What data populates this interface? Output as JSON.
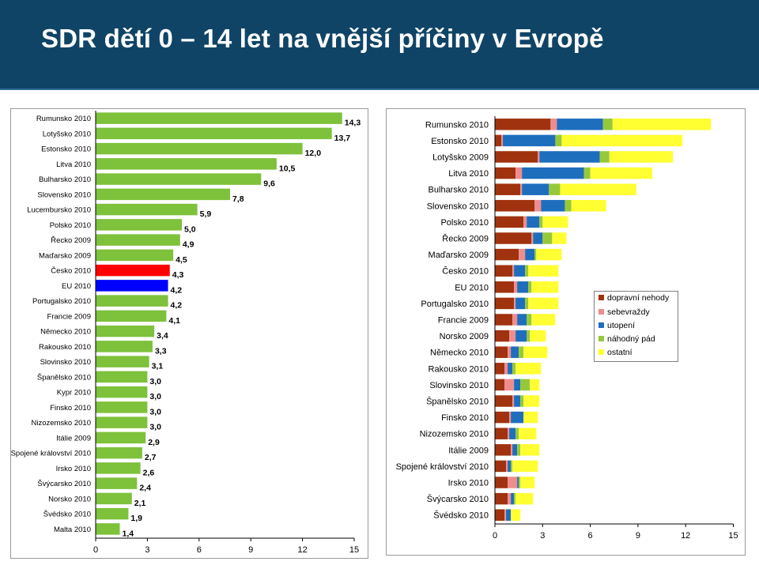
{
  "header": {
    "title": "SDR dětí 0 – 14 let na vnější příčiny v Evropě"
  },
  "colors": {
    "header_bg": "#0f4466",
    "bar_default": "#7ec13b",
    "bar_cesko": "#ff0000",
    "bar_eu": "#0000ff",
    "cat_dopravni": "#a0320f",
    "cat_sebevrazdy": "#f08c8c",
    "cat_utopeni": "#1e6ebe",
    "cat_nahodny": "#96c83c",
    "cat_ostatni": "#ffff32"
  },
  "chart_data": [
    {
      "type": "bar",
      "orientation": "horizontal",
      "categories": [
        "Rumunsko 2010",
        "Lotyšsko 2010",
        "Estonsko 2010",
        "Litva 2010",
        "Bulharsko 2010",
        "Slovensko 2010",
        "Lucembursko 2010",
        "Polsko 2010",
        "Řecko 2009",
        "Maďarsko 2009",
        "Česko 2010",
        "EU 2010",
        "Portugalsko 2010",
        "Francie 2009",
        "Německo 2010",
        "Rakousko 2010",
        "Slovinsko 2010",
        "Španělsko 2010",
        "Kypr 2010",
        "Finsko 2010",
        "Nizozemsko 2010",
        "Itálie 2009",
        "Spojené království 2010",
        "Irsko 2010",
        "Švýcarsko 2010",
        "Norsko 2010",
        "Švédsko 2010",
        "Malta 2010"
      ],
      "values": [
        14.3,
        13.7,
        12.0,
        10.5,
        9.6,
        7.8,
        5.9,
        5.0,
        4.9,
        4.5,
        4.3,
        4.2,
        4.2,
        4.1,
        3.4,
        3.3,
        3.1,
        3.0,
        3.0,
        3.0,
        3.0,
        2.9,
        2.7,
        2.6,
        2.4,
        2.1,
        1.9,
        1.4
      ],
      "value_labels": [
        "14,3",
        "13,7",
        "12,0",
        "10,5",
        "9,6",
        "7,8",
        "5,9",
        "5,0",
        "4,9",
        "4,5",
        "4,3",
        "4,2",
        "4,2",
        "4,1",
        "3,4",
        "3,3",
        "3,1",
        "3,0",
        "3,0",
        "3,0",
        "3,0",
        "2,9",
        "2,7",
        "2,6",
        "2,4",
        "2,1",
        "1,9",
        "1,4"
      ],
      "highlight": {
        "Česko 2010": "red",
        "EU 2010": "blue"
      },
      "xlim": [
        0,
        15
      ],
      "xticks": [
        0,
        3,
        6,
        9,
        12,
        15
      ],
      "grid": false,
      "legend": "none"
    },
    {
      "type": "bar",
      "orientation": "horizontal",
      "stacked": true,
      "categories": [
        "Rumunsko 2010",
        "Estonsko 2010",
        "Lotyšsko 2009",
        "Litva 2010",
        "Bulharsko 2010",
        "Slovensko 2010",
        "Polsko 2010",
        "Řecko 2009",
        "Maďarsko 2009",
        "Česko 2010",
        "EU 2010",
        "Portugalsko 2010",
        "Francie 2009",
        "Norsko 2009",
        "Německo 2010",
        "Rakousko 2010",
        "Slovinsko 2010",
        "Španělsko 2010",
        "Finsko 2010",
        "Nizozemsko 2010",
        "Itálie 2009",
        "Spojené království 2010",
        "Irsko 2010",
        "Švýcarsko 2010",
        "Švédsko 2010"
      ],
      "series": [
        {
          "name": "dopravní nehody",
          "values": [
            3.5,
            0.4,
            2.7,
            1.3,
            1.6,
            2.5,
            1.8,
            2.3,
            1.5,
            1.1,
            1.2,
            1.2,
            1.1,
            0.9,
            0.8,
            0.6,
            0.6,
            1.1,
            0.9,
            0.8,
            1.0,
            0.7,
            0.8,
            0.8,
            0.6
          ]
        },
        {
          "name": "sebevraždy",
          "values": [
            0.4,
            0.1,
            0.1,
            0.4,
            0.1,
            0.4,
            0.2,
            0.1,
            0.4,
            0.1,
            0.2,
            0.1,
            0.3,
            0.4,
            0.2,
            0.2,
            0.6,
            0.1,
            0.1,
            0.1,
            0.1,
            0.1,
            0.6,
            0.2,
            0.1
          ]
        },
        {
          "name": "utopení",
          "values": [
            2.9,
            3.3,
            3.8,
            3.9,
            1.7,
            1.5,
            0.8,
            0.6,
            0.6,
            0.7,
            0.7,
            0.6,
            0.6,
            0.7,
            0.5,
            0.3,
            0.4,
            0.4,
            0.8,
            0.4,
            0.3,
            0.2,
            0.1,
            0.2,
            0.3
          ]
        },
        {
          "name": "náhodný pád",
          "values": [
            0.6,
            0.4,
            0.6,
            0.4,
            0.7,
            0.4,
            0.2,
            0.6,
            0.1,
            0.2,
            0.2,
            0.2,
            0.3,
            0.2,
            0.3,
            0.2,
            0.6,
            0.2,
            0.0,
            0.2,
            0.2,
            0.1,
            0.1,
            0.1,
            0.0
          ]
        },
        {
          "name": "ostatní",
          "values": [
            6.2,
            7.6,
            4.0,
            3.9,
            4.8,
            2.2,
            1.6,
            0.9,
            1.6,
            1.9,
            1.7,
            1.9,
            1.5,
            1.0,
            1.5,
            1.6,
            0.6,
            1.0,
            0.9,
            1.1,
            1.2,
            1.6,
            0.9,
            1.1,
            0.6
          ]
        }
      ],
      "xlim": [
        0,
        15
      ],
      "xticks": [
        0,
        3,
        6,
        9,
        12,
        15
      ],
      "grid": false,
      "legend": "right"
    }
  ]
}
